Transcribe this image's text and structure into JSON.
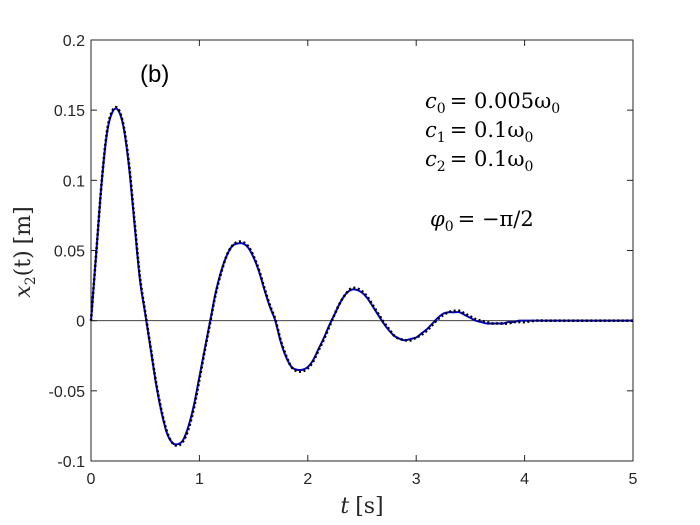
{
  "chart_data": {
    "type": "line",
    "panel_label": "(b)",
    "xlabel": "t [s]",
    "xlabel_var": "t",
    "xlabel_unit": "[s]",
    "ylabel": "x2(t) [m]",
    "ylabel_var": "x",
    "ylabel_sub": "2",
    "ylabel_arg": "(t)",
    "ylabel_unit": "[m]",
    "xlim": [
      0,
      5
    ],
    "ylim": [
      -0.1,
      0.2
    ],
    "xticks": [
      0,
      1,
      2,
      3,
      4,
      5
    ],
    "xtick_labels": [
      "0",
      "1",
      "2",
      "3",
      "4",
      "5"
    ],
    "yticks": [
      -0.1,
      -0.05,
      0,
      0.05,
      0.1,
      0.15,
      0.2
    ],
    "ytick_labels": [
      "-0.1",
      "-0.05",
      "0",
      "0.05",
      "0.1",
      "0.15",
      "0.2"
    ],
    "zero_line": true,
    "grid": false,
    "annotations": {
      "c0": {
        "sym": "c",
        "sub": "0",
        "rhs": "= 0.005ω",
        "rhs_sub": "0"
      },
      "c1": {
        "sym": "c",
        "sub": "1",
        "rhs": "= 0.1ω",
        "rhs_sub": "0"
      },
      "c2": {
        "sym": "c",
        "sub": "2",
        "rhs": "= 0.1ω",
        "rhs_sub": "0"
      },
      "phi0": {
        "sym": "φ",
        "sub": "0",
        "rhs": "= −π/2"
      }
    },
    "series": [
      {
        "style": "solid",
        "color": "#0000cc",
        "x": [
          0,
          0.05,
          0.1,
          0.15,
          0.2,
          0.25,
          0.3,
          0.35,
          0.4,
          0.45,
          0.5,
          0.55,
          0.6,
          0.65,
          0.7,
          0.75,
          0.8,
          0.85,
          0.9,
          0.95,
          1.0,
          1.05,
          1.1,
          1.15,
          1.2,
          1.25,
          1.3,
          1.35,
          1.4,
          1.45,
          1.5,
          1.55,
          1.6,
          1.65,
          1.7,
          1.75,
          1.8,
          1.85,
          1.9,
          1.95,
          2.0,
          2.05,
          2.1,
          2.15,
          2.2,
          2.25,
          2.3,
          2.35,
          2.4,
          2.45,
          2.5,
          2.55,
          2.6,
          2.65,
          2.7,
          2.75,
          2.8,
          2.85,
          2.9,
          2.95,
          3.0,
          3.05,
          3.1,
          3.15,
          3.2,
          3.25,
          3.3,
          3.35,
          3.4,
          3.45,
          3.5,
          3.55,
          3.6,
          3.65,
          3.7,
          3.75,
          3.8,
          3.85,
          3.9,
          3.95,
          4.0,
          4.1,
          4.2,
          4.3,
          4.4,
          4.5,
          4.6,
          4.7,
          4.8,
          4.9,
          5.0
        ],
        "y": [
          0,
          0.05,
          0.1,
          0.135,
          0.149,
          0.15,
          0.138,
          0.11,
          0.07,
          0.03,
          0.005,
          -0.02,
          -0.045,
          -0.065,
          -0.08,
          -0.087,
          -0.088,
          -0.085,
          -0.075,
          -0.06,
          -0.04,
          -0.02,
          0,
          0.02,
          0.035,
          0.046,
          0.053,
          0.055,
          0.055,
          0.052,
          0.045,
          0.035,
          0.022,
          0.01,
          0,
          -0.015,
          -0.026,
          -0.033,
          -0.035,
          -0.035,
          -0.033,
          -0.028,
          -0.02,
          -0.012,
          -0.003,
          0.005,
          0.013,
          0.019,
          0.022,
          0.022,
          0.02,
          0.016,
          0.01,
          0.004,
          -0.002,
          -0.007,
          -0.011,
          -0.013,
          -0.014,
          -0.013,
          -0.012,
          -0.009,
          -0.006,
          -0.002,
          0.002,
          0.005,
          0.006,
          0.006,
          0.006,
          0.004,
          0.002,
          0.0,
          -0.001,
          -0.002,
          -0.002,
          -0.002,
          -0.002,
          -0.001,
          -0.001,
          0.0,
          0.0,
          0.0,
          0.0,
          0.0,
          0.0,
          0.0,
          0.0,
          0.0,
          0.0,
          0.0,
          0.0
        ]
      },
      {
        "style": "dotted",
        "color": "#000000",
        "x": [
          0,
          0.05,
          0.1,
          0.15,
          0.2,
          0.25,
          0.3,
          0.35,
          0.4,
          0.45,
          0.5,
          0.55,
          0.6,
          0.65,
          0.7,
          0.75,
          0.8,
          0.85,
          0.9,
          0.95,
          1.0,
          1.05,
          1.1,
          1.15,
          1.2,
          1.25,
          1.3,
          1.35,
          1.4,
          1.45,
          1.5,
          1.55,
          1.6,
          1.65,
          1.7,
          1.75,
          1.8,
          1.85,
          1.9,
          1.95,
          2.0,
          2.05,
          2.1,
          2.15,
          2.2,
          2.25,
          2.3,
          2.35,
          2.4,
          2.45,
          2.5,
          2.55,
          2.6,
          2.65,
          2.7,
          2.75,
          2.8,
          2.85,
          2.9,
          2.95,
          3.0,
          3.05,
          3.1,
          3.15,
          3.2,
          3.25,
          3.3,
          3.35,
          3.4,
          3.45,
          3.5,
          3.55,
          3.6,
          3.65,
          3.7,
          3.75,
          3.8,
          3.85,
          3.9,
          3.95,
          4.0,
          4.1,
          4.2,
          4.3,
          4.4,
          4.5,
          4.6,
          4.7,
          4.8,
          4.9,
          5.0
        ],
        "y": [
          0,
          0.05,
          0.1,
          0.136,
          0.15,
          0.151,
          0.139,
          0.112,
          0.072,
          0.032,
          0.006,
          -0.019,
          -0.044,
          -0.064,
          -0.079,
          -0.087,
          -0.089,
          -0.086,
          -0.077,
          -0.062,
          -0.042,
          -0.021,
          -0.001,
          0.019,
          0.034,
          0.046,
          0.053,
          0.056,
          0.056,
          0.053,
          0.046,
          0.036,
          0.023,
          0.011,
          0.001,
          -0.014,
          -0.025,
          -0.033,
          -0.036,
          -0.036,
          -0.034,
          -0.029,
          -0.021,
          -0.013,
          -0.004,
          0.005,
          0.013,
          0.019,
          0.023,
          0.023,
          0.021,
          0.017,
          0.011,
          0.005,
          -0.001,
          -0.006,
          -0.011,
          -0.013,
          -0.014,
          -0.014,
          -0.012,
          -0.01,
          -0.007,
          -0.003,
          0.001,
          0.004,
          0.006,
          0.007,
          0.007,
          0.005,
          0.003,
          0.001,
          0.0,
          -0.001,
          -0.002,
          -0.002,
          -0.002,
          -0.002,
          -0.001,
          -0.001,
          -0.001,
          0.0,
          0.0,
          0.0,
          0.0,
          0.0,
          0.0,
          0.0,
          0.0,
          0.0,
          0.0
        ]
      }
    ]
  }
}
